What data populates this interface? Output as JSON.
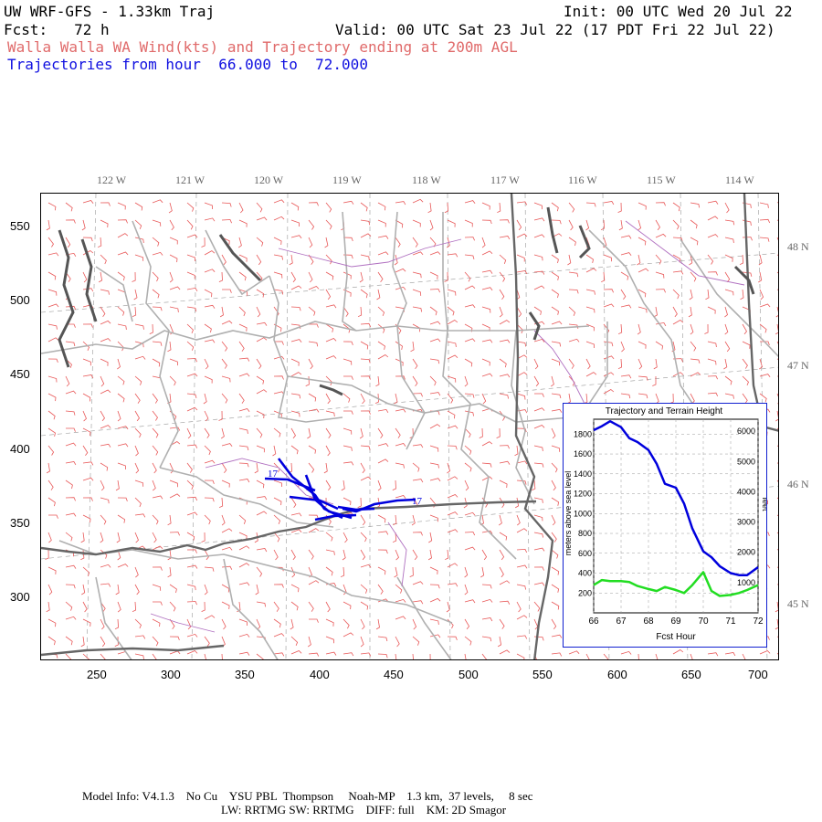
{
  "header": {
    "model_title": "UW WRF-GFS - 1.33km Traj",
    "init": "Init: 00 UTC Wed 20 Jul 22",
    "fcst": "Fcst:   72 h",
    "valid": "Valid: 00 UTC Sat 23 Jul 22 (17 PDT Fri 22 Jul 22)",
    "product": "Walla Walla WA Wind(kts) and Trajectory ending at 200m AGL",
    "traj_range": "Trajectories from hour  66.000 to  72.000"
  },
  "map": {
    "lon_labels": [
      "122 W",
      "121 W",
      "120 W",
      "119 W",
      "118 W",
      "117 W",
      "116 W",
      "115 W",
      "114 W"
    ],
    "lat_labels": [
      "48 N",
      "47 N",
      "46 N",
      "45 N"
    ],
    "x_ticks": [
      "250",
      "300",
      "350",
      "400",
      "450",
      "500",
      "550",
      "600",
      "650",
      "700"
    ],
    "y_ticks": [
      "550",
      "500",
      "450",
      "400",
      "350",
      "300"
    ],
    "traj_label_1": "17",
    "traj_label_2": "17",
    "colors": {
      "wind_barbs": "#e85858",
      "trajectory": "#0000dd",
      "state_border": "#666666",
      "county_border": "#b0b0b0",
      "water": "#555555",
      "river": "#b070c0"
    }
  },
  "inset": {
    "title": "Trajectory and Terrain Height",
    "ylabel_left": "meters above sea level",
    "ylabel_right": "feet",
    "xlabel": "Fcst Hour",
    "left_ticks": [
      "1800",
      "1600",
      "1400",
      "1200",
      "1000",
      "800",
      "600",
      "400",
      "200"
    ],
    "right_ticks": [
      "6000",
      "5000",
      "4000",
      "3000",
      "2000",
      "1000"
    ],
    "x_ticks": [
      "66",
      "67",
      "68",
      "69",
      "70",
      "71",
      "72"
    ]
  },
  "chart_data": {
    "type": "line",
    "title": "Trajectory and Terrain Height",
    "xlabel": "Fcst Hour",
    "ylabel": "meters above sea level",
    "xlim": [
      66,
      72
    ],
    "ylim": [
      0,
      1950
    ],
    "grid": true,
    "x": [
      66.0,
      66.3,
      66.6,
      67.0,
      67.3,
      67.6,
      68.0,
      68.3,
      68.6,
      69.0,
      69.3,
      69.6,
      70.0,
      70.3,
      70.6,
      71.0,
      71.3,
      71.6,
      72.0
    ],
    "series": [
      {
        "name": "trajectory height",
        "color": "#0000dd",
        "values": [
          1840,
          1880,
          1930,
          1870,
          1760,
          1720,
          1640,
          1500,
          1300,
          1260,
          1100,
          850,
          620,
          560,
          470,
          400,
          380,
          380,
          460
        ]
      },
      {
        "name": "terrain height",
        "color": "#22dd22",
        "values": [
          280,
          330,
          320,
          320,
          310,
          270,
          240,
          220,
          260,
          230,
          200,
          280,
          410,
          220,
          170,
          180,
          200,
          230,
          280
        ]
      }
    ]
  },
  "footer": {
    "line1": "Model Info: V4.1.3    No Cu    YSU PBL  Thompson     Noah-MP    1.3 km,  37 levels,     8 sec",
    "line2": "LW: RRTMG SW: RRTMG    DIFF: full    KM: 2D Smagor"
  }
}
